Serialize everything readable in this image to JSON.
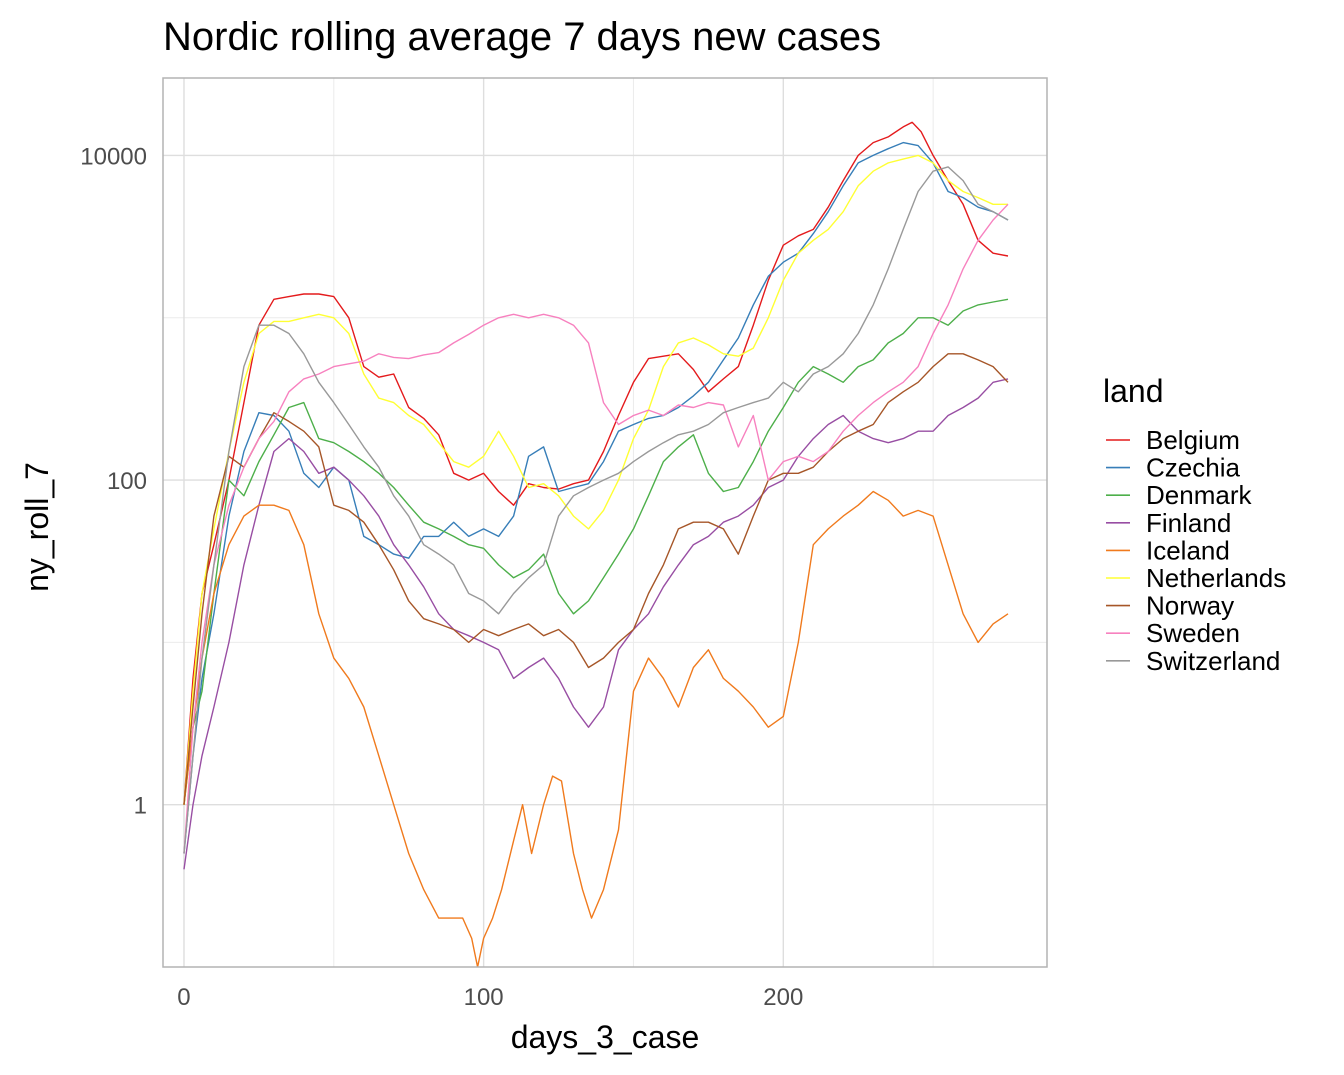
{
  "chart_data": {
    "type": "line",
    "title": "Nordic rolling average 7 days new cases",
    "xlabel": "days_3_case",
    "ylabel": "ny_roll_7",
    "x_scale": "linear",
    "y_scale": "log10",
    "xlim": [
      -7,
      288
    ],
    "ylim": [
      0.1,
      30000
    ],
    "x_ticks": [
      0,
      100,
      200
    ],
    "x_tick_labels": [
      "0",
      "100",
      "200"
    ],
    "y_ticks": [
      1,
      100,
      10000
    ],
    "y_tick_labels": [
      "1",
      "100",
      "10000"
    ],
    "grid": true,
    "legend": {
      "title": "land",
      "placement": "right"
    },
    "series": [
      {
        "name": "Belgium",
        "color": "#E41A1C",
        "x": [
          0,
          3,
          6,
          10,
          15,
          20,
          25,
          30,
          35,
          40,
          45,
          50,
          55,
          60,
          65,
          70,
          75,
          80,
          85,
          90,
          95,
          100,
          105,
          110,
          115,
          120,
          125,
          130,
          135,
          140,
          145,
          150,
          155,
          160,
          165,
          170,
          175,
          180,
          185,
          190,
          195,
          200,
          205,
          210,
          215,
          220,
          225,
          230,
          235,
          240,
          243,
          246,
          250,
          255,
          260,
          265,
          270,
          275
        ],
        "y": [
          1,
          6,
          20,
          40,
          100,
          300,
          900,
          1300,
          1350,
          1400,
          1400,
          1350,
          1000,
          500,
          430,
          450,
          280,
          240,
          190,
          110,
          100,
          110,
          85,
          70,
          95,
          90,
          88,
          95,
          100,
          150,
          250,
          400,
          560,
          580,
          600,
          480,
          350,
          420,
          500,
          900,
          1700,
          2800,
          3200,
          3500,
          4800,
          7000,
          10000,
          12000,
          13000,
          15000,
          16000,
          14000,
          10000,
          7000,
          5000,
          3000,
          2500,
          2400
        ]
      },
      {
        "name": "Czechia",
        "color": "#377EB8",
        "x": [
          0,
          3,
          6,
          10,
          15,
          20,
          25,
          30,
          35,
          40,
          45,
          50,
          55,
          60,
          65,
          70,
          75,
          80,
          85,
          90,
          95,
          100,
          105,
          110,
          115,
          120,
          125,
          130,
          135,
          140,
          145,
          150,
          155,
          160,
          165,
          170,
          175,
          180,
          185,
          190,
          195,
          200,
          205,
          210,
          215,
          220,
          225,
          230,
          235,
          240,
          245,
          250,
          255,
          260,
          265,
          270,
          275
        ],
        "y": [
          0.5,
          2,
          6,
          15,
          60,
          150,
          260,
          250,
          200,
          110,
          90,
          120,
          100,
          45,
          40,
          35,
          33,
          45,
          45,
          55,
          45,
          50,
          45,
          60,
          140,
          160,
          85,
          90,
          95,
          130,
          200,
          220,
          240,
          250,
          280,
          330,
          400,
          550,
          750,
          1200,
          1800,
          2200,
          2500,
          3300,
          4500,
          6500,
          9000,
          10000,
          11000,
          12000,
          11500,
          9000,
          6000,
          5500,
          4800,
          4500,
          4000
        ]
      },
      {
        "name": "Denmark",
        "color": "#4DAF4A",
        "x": [
          0,
          3,
          6,
          10,
          15,
          20,
          25,
          30,
          35,
          40,
          45,
          50,
          55,
          60,
          65,
          70,
          75,
          80,
          85,
          90,
          95,
          100,
          105,
          110,
          115,
          120,
          125,
          130,
          135,
          140,
          145,
          150,
          155,
          160,
          165,
          170,
          175,
          180,
          185,
          190,
          195,
          200,
          205,
          210,
          215,
          220,
          225,
          230,
          235,
          240,
          245,
          250,
          255,
          260,
          265,
          270,
          275
        ],
        "y": [
          1,
          3,
          5,
          20,
          100,
          80,
          130,
          190,
          280,
          300,
          180,
          170,
          150,
          130,
          110,
          90,
          70,
          55,
          50,
          45,
          40,
          38,
          30,
          25,
          28,
          35,
          20,
          15,
          18,
          25,
          35,
          50,
          80,
          130,
          160,
          190,
          110,
          85,
          90,
          130,
          200,
          280,
          400,
          500,
          450,
          400,
          500,
          550,
          700,
          800,
          1000,
          1000,
          900,
          1100,
          1200,
          1250,
          1300
        ]
      },
      {
        "name": "Finland",
        "color": "#984EA3",
        "x": [
          0,
          3,
          6,
          10,
          15,
          20,
          25,
          30,
          35,
          40,
          45,
          50,
          55,
          60,
          65,
          70,
          75,
          80,
          85,
          90,
          95,
          100,
          105,
          110,
          115,
          120,
          125,
          130,
          135,
          140,
          145,
          150,
          155,
          160,
          165,
          170,
          175,
          180,
          185,
          190,
          195,
          200,
          205,
          210,
          215,
          220,
          225,
          230,
          235,
          240,
          245,
          250,
          255,
          260,
          265,
          270,
          275
        ],
        "y": [
          0.4,
          1,
          2,
          4,
          10,
          30,
          70,
          150,
          180,
          150,
          110,
          120,
          100,
          80,
          60,
          40,
          30,
          22,
          15,
          12,
          11,
          10,
          9,
          6,
          7,
          8,
          6,
          4,
          3,
          4,
          9,
          12,
          15,
          22,
          30,
          40,
          45,
          55,
          60,
          70,
          90,
          100,
          140,
          180,
          220,
          250,
          200,
          180,
          170,
          180,
          200,
          200,
          250,
          280,
          320,
          400,
          420
        ]
      },
      {
        "name": "Iceland",
        "color": "#F07A1D",
        "x": [
          0,
          3,
          6,
          10,
          15,
          20,
          25,
          30,
          35,
          40,
          45,
          50,
          55,
          60,
          65,
          70,
          75,
          80,
          85,
          90,
          93,
          96,
          98,
          100,
          103,
          106,
          110,
          113,
          116,
          120,
          123,
          126,
          130,
          133,
          136,
          140,
          145,
          150,
          155,
          160,
          165,
          170,
          175,
          180,
          185,
          190,
          195,
          200,
          205,
          210,
          215,
          220,
          225,
          230,
          235,
          240,
          245,
          250,
          255,
          260,
          265,
          270,
          275
        ],
        "y": [
          1,
          3,
          8,
          20,
          40,
          60,
          70,
          70,
          65,
          40,
          15,
          8,
          6,
          4,
          2,
          1,
          0.5,
          0.3,
          0.2,
          0.2,
          0.2,
          0.15,
          0.1,
          0.15,
          0.2,
          0.3,
          0.6,
          1,
          0.5,
          1,
          1.5,
          1.4,
          0.5,
          0.3,
          0.2,
          0.3,
          0.7,
          5,
          8,
          6,
          4,
          7,
          9,
          6,
          5,
          4,
          3,
          3.5,
          10,
          40,
          50,
          60,
          70,
          85,
          75,
          60,
          65,
          60,
          30,
          15,
          10,
          13,
          15
        ]
      },
      {
        "name": "Netherlands",
        "color": "#FFFF33",
        "x": [
          0,
          3,
          6,
          10,
          15,
          20,
          25,
          30,
          35,
          40,
          45,
          50,
          55,
          60,
          65,
          70,
          75,
          80,
          85,
          90,
          95,
          100,
          105,
          110,
          115,
          120,
          125,
          130,
          135,
          140,
          145,
          150,
          155,
          160,
          165,
          170,
          175,
          180,
          185,
          190,
          195,
          200,
          205,
          210,
          215,
          220,
          225,
          230,
          235,
          240,
          245,
          250,
          255,
          260,
          265,
          270,
          275
        ],
        "y": [
          1,
          5,
          20,
          50,
          150,
          400,
          800,
          950,
          950,
          1000,
          1050,
          1000,
          800,
          450,
          320,
          300,
          250,
          220,
          170,
          130,
          120,
          140,
          200,
          140,
          90,
          95,
          80,
          60,
          50,
          65,
          100,
          180,
          270,
          500,
          700,
          750,
          680,
          600,
          580,
          650,
          1000,
          1700,
          2500,
          3000,
          3500,
          4500,
          6500,
          8000,
          9000,
          9500,
          10000,
          9000,
          7000,
          6000,
          5500,
          5000,
          5000
        ]
      },
      {
        "name": "Norway",
        "color": "#A65628",
        "x": [
          0,
          3,
          6,
          10,
          15,
          20,
          25,
          30,
          35,
          40,
          45,
          50,
          55,
          60,
          65,
          70,
          75,
          80,
          85,
          90,
          95,
          100,
          105,
          110,
          115,
          120,
          125,
          130,
          135,
          140,
          145,
          150,
          155,
          160,
          165,
          170,
          175,
          180,
          185,
          190,
          195,
          200,
          205,
          210,
          215,
          220,
          225,
          230,
          235,
          240,
          245,
          250,
          255,
          260,
          265,
          270,
          275
        ],
        "y": [
          1,
          4,
          15,
          60,
          140,
          120,
          180,
          260,
          230,
          200,
          160,
          70,
          65,
          55,
          40,
          28,
          18,
          14,
          13,
          12,
          10,
          12,
          11,
          12,
          13,
          11,
          12,
          10,
          7,
          8,
          10,
          12,
          20,
          30,
          50,
          55,
          55,
          50,
          35,
          60,
          100,
          110,
          110,
          120,
          150,
          180,
          200,
          220,
          300,
          350,
          400,
          500,
          600,
          600,
          550,
          500,
          400
        ]
      },
      {
        "name": "Sweden",
        "color": "#F781BF",
        "x": [
          0,
          3,
          6,
          10,
          15,
          20,
          25,
          30,
          35,
          40,
          45,
          50,
          55,
          60,
          65,
          70,
          75,
          80,
          85,
          90,
          95,
          100,
          105,
          110,
          115,
          120,
          125,
          130,
          135,
          140,
          145,
          150,
          155,
          160,
          165,
          170,
          175,
          180,
          185,
          190,
          195,
          200,
          205,
          210,
          215,
          220,
          225,
          230,
          235,
          240,
          245,
          250,
          255,
          260,
          265,
          270,
          275
        ],
        "y": [
          0.5,
          3,
          10,
          30,
          70,
          120,
          180,
          230,
          350,
          420,
          450,
          500,
          520,
          540,
          600,
          570,
          560,
          590,
          610,
          700,
          790,
          900,
          1000,
          1050,
          1000,
          1050,
          1000,
          900,
          700,
          300,
          220,
          250,
          270,
          250,
          290,
          280,
          300,
          290,
          160,
          250,
          100,
          130,
          140,
          130,
          150,
          200,
          250,
          300,
          350,
          400,
          500,
          800,
          1200,
          2000,
          3000,
          4000,
          5000
        ]
      },
      {
        "name": "Switzerland",
        "color": "#999999",
        "x": [
          0,
          3,
          6,
          10,
          15,
          20,
          25,
          30,
          35,
          40,
          45,
          50,
          55,
          60,
          65,
          70,
          75,
          80,
          85,
          90,
          95,
          100,
          105,
          110,
          115,
          120,
          125,
          130,
          135,
          140,
          145,
          150,
          155,
          160,
          165,
          170,
          175,
          180,
          185,
          190,
          195,
          200,
          205,
          210,
          215,
          220,
          225,
          230,
          235,
          240,
          245,
          250,
          255,
          260,
          265,
          270,
          275
        ],
        "y": [
          0.5,
          2,
          8,
          30,
          150,
          500,
          900,
          900,
          800,
          600,
          400,
          300,
          220,
          160,
          120,
          80,
          60,
          40,
          35,
          30,
          20,
          18,
          15,
          20,
          25,
          30,
          60,
          80,
          90,
          100,
          110,
          130,
          150,
          170,
          190,
          200,
          220,
          260,
          280,
          300,
          320,
          400,
          350,
          450,
          500,
          600,
          800,
          1200,
          2000,
          3500,
          6000,
          8000,
          8500,
          7000,
          5000,
          4500,
          4000
        ]
      }
    ]
  }
}
